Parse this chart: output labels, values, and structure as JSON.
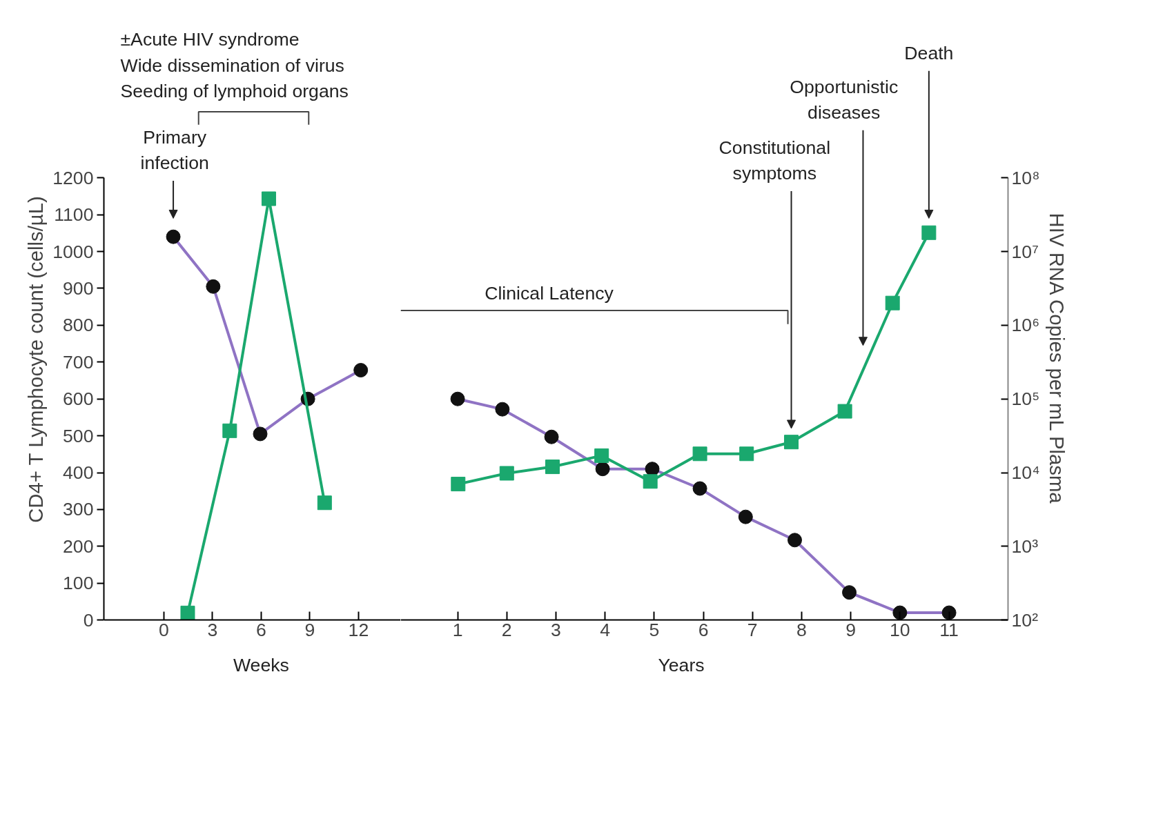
{
  "chart_data": [
    {
      "type": "line",
      "ylabel": "CD4+ T Lymphocyte count (cells/µL)",
      "xlim": [
        -3.7,
        14.6
      ],
      "xticks": [
        0,
        3,
        6,
        9,
        12
      ],
      "ylim": [
        0,
        1200
      ],
      "yticks": [
        0,
        100,
        200,
        300,
        400,
        500,
        600,
        700,
        800,
        900,
        1000,
        1100,
        1200
      ],
      "y2lim": [
        100,
        100000000
      ],
      "log": "y2",
      "grid": false,
      "series": [
        {
          "color": "#8f73c4",
          "marker": "circle",
          "x": [
            0.58,
            3.04,
            5.94,
            8.88,
            12.14
          ],
          "values": [
            1040,
            905,
            505,
            600,
            678
          ]
        },
        {
          "color": "#1aa86e",
          "marker": "square",
          "axis": "y2",
          "x": [
            1.47,
            4.06,
            6.47,
            9.91
          ],
          "values": [
            125,
            37000,
            52000000,
            3900
          ]
        }
      ],
      "annotations": [
        "±Acute HIV syndrome\nWide dissemination of virus\nSeeding of lymphoid organs",
        "Primary infection",
        "Weeks"
      ]
    },
    {
      "type": "line",
      "y2label": "HIV RNA Copies per mL Plasma",
      "xlim": [
        -0.16,
        12.2
      ],
      "xticks": [
        1,
        2,
        3,
        4,
        5,
        6,
        7,
        8,
        9,
        10,
        11
      ],
      "ylim": [
        0,
        1200
      ],
      "y2lim": [
        100,
        100000000
      ],
      "y2ticks": [
        {
          "value": 100,
          "label": "10²"
        },
        {
          "value": 1000,
          "label": "10³"
        },
        {
          "value": 10000,
          "label": "10⁴"
        },
        {
          "value": 100000,
          "label": "10⁵"
        },
        {
          "value": 1000000,
          "label": "10⁶"
        },
        {
          "value": 10000000,
          "label": "10⁷"
        },
        {
          "value": 100000000,
          "label": "10⁸"
        }
      ],
      "log": "y2",
      "grid": false,
      "series": [
        {
          "color": "#8f73c4",
          "marker": "circle",
          "x": [
            1.0,
            1.91,
            2.91,
            3.95,
            4.96,
            5.93,
            6.86,
            7.86,
            8.97,
            10.0,
            11.0
          ],
          "values": [
            600,
            572,
            497,
            410,
            410,
            357,
            280,
            217,
            75,
            20,
            20
          ]
        },
        {
          "color": "#1aa86e",
          "marker": "square",
          "axis": "y2",
          "x": [
            1.01,
            2.0,
            2.93,
            3.93,
            4.92,
            5.93,
            6.88,
            7.79,
            8.88,
            9.85,
            10.59
          ],
          "values": [
            7000,
            9800,
            12000,
            17000,
            7600,
            18000,
            18000,
            26000,
            68000,
            2000000,
            18000000
          ]
        }
      ],
      "annotations": [
        "Clinical Latency",
        "Constitutional symptoms",
        "Opportunistic diseases",
        "Death",
        "Years"
      ]
    }
  ]
}
